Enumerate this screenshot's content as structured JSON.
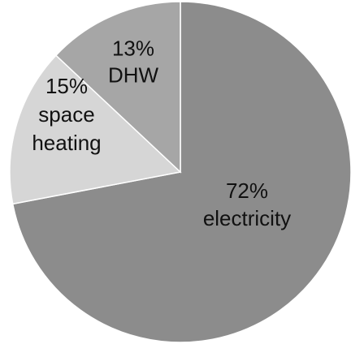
{
  "chart_data": {
    "type": "pie",
    "start_angle_deg": 0,
    "direction": "clockwise",
    "slices": [
      {
        "label": "electricity",
        "value": 72,
        "display": "72%",
        "color": "#8c8c8c"
      },
      {
        "label": "space heating",
        "value": 15,
        "display": "15%",
        "color": "#d6d6d6"
      },
      {
        "label": "DHW",
        "value": 13,
        "display": "13%",
        "color": "#a6a6a6"
      }
    ],
    "label_lines": [
      [
        "72%",
        "electricity"
      ],
      [
        "15%",
        "space",
        "heating"
      ],
      [
        "13%",
        "DHW"
      ]
    ],
    "slice_border_color": "#ffffff",
    "legend": "none"
  }
}
